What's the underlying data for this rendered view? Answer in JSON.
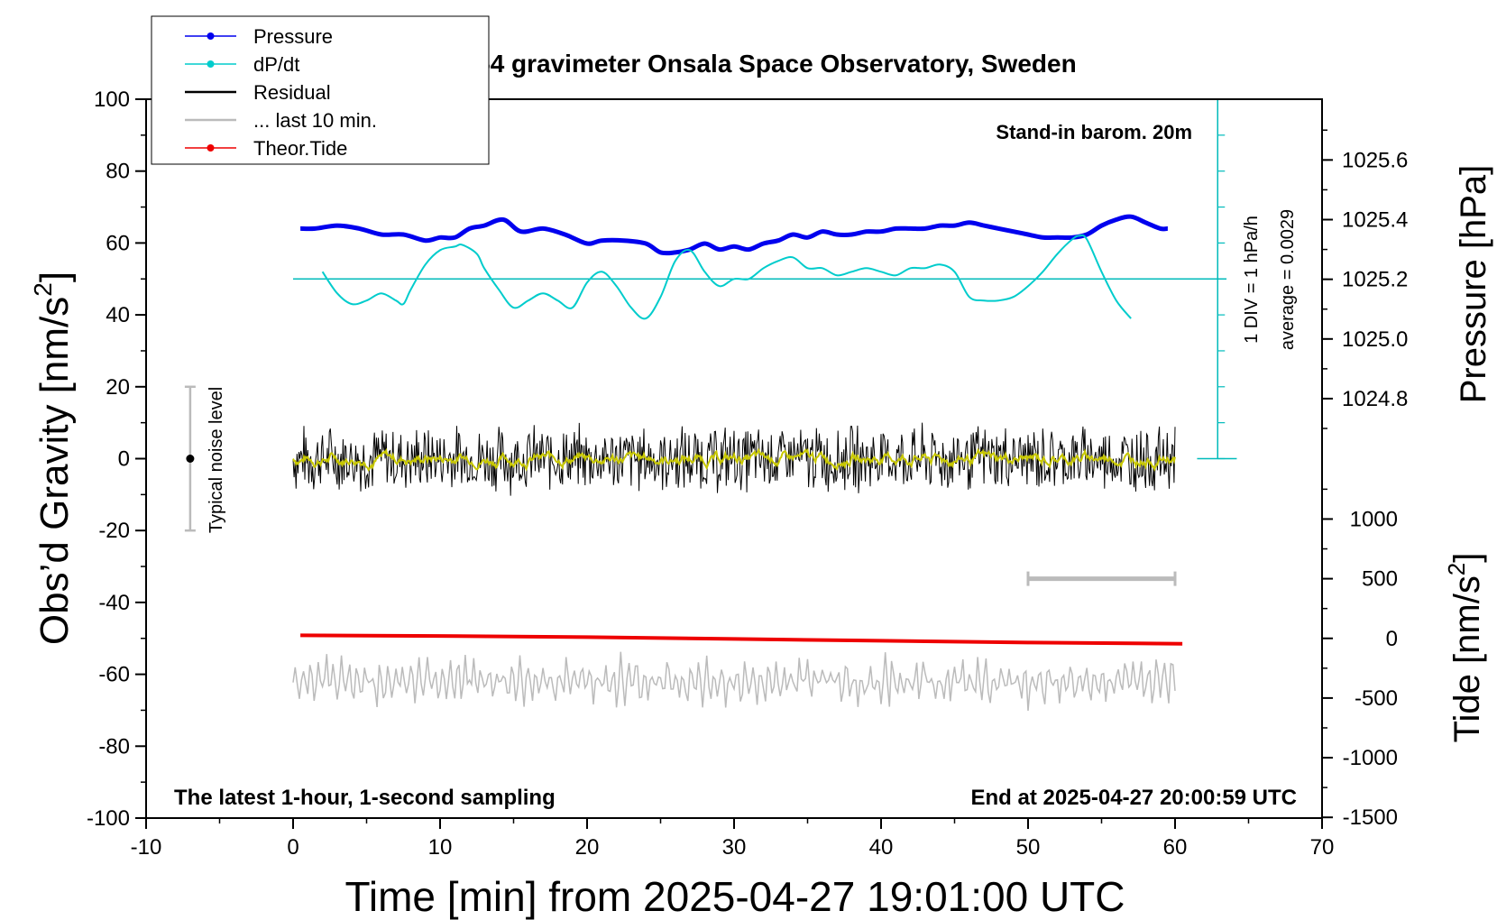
{
  "chart_data": {
    "type": "line",
    "title": "SCG_054 gravimeter Onsala Space Observatory, Sweden",
    "xlabel": "Time [min] from 2025-04-27 19:01:00 UTC",
    "ylabel_prefix": "Obs’d Gravity [nm/s",
    "ylabel_sup": "2",
    "ylabel_suffix": "]",
    "y2label": "Pressure [hPa]",
    "y3label_prefix": "Tide [nm/s",
    "y3label_sup": "2",
    "y3label_suffix": "]",
    "xlim": [
      -10,
      70
    ],
    "ylim": [
      -100,
      100
    ],
    "x_ticks": [
      "-10",
      "0",
      "10",
      "20",
      "30",
      "40",
      "50",
      "60",
      "70"
    ],
    "y_ticks": [
      "-100",
      "-80",
      "-60",
      "-40",
      "-20",
      "0",
      "20",
      "40",
      "60",
      "80",
      "100"
    ],
    "pressure_ticks": [
      "1024.8",
      "1025.0",
      "1025.2",
      "1025.4",
      "1025.6"
    ],
    "tide_ticks": [
      "-1500",
      "-1000",
      "-500",
      "0",
      "500",
      "1000"
    ],
    "legend_position": "top-left",
    "legend": [
      {
        "label": "Pressure",
        "color": "#0000ee",
        "marker": true
      },
      {
        "label": "dP/dt",
        "color": "#00cccc",
        "marker": true
      },
      {
        "label": "Residual",
        "color": "#000000",
        "marker": false
      },
      {
        "label": "... last 10 min.",
        "color": "#bbbbbb",
        "marker": false
      },
      {
        "label": "Theor.Tide",
        "color": "#ee0000",
        "marker": true
      }
    ],
    "annotations": {
      "stand_in": "Stand-in barom. 20m",
      "div_label": "1 DIV = 1 hPa/h",
      "average_label": "average = 0.0029",
      "noise_label": "Typical noise level",
      "latest_label": "The latest 1-hour, 1-second sampling",
      "end_label": "End at 2025-04-27 20:00:59 UTC"
    },
    "noise_bar": {
      "x": -7,
      "center": 0,
      "half_range": 20
    },
    "dpdt_baseline_y": 50,
    "series": [
      {
        "name": "Pressure",
        "axis": "pressure",
        "color": "#0000ee",
        "x": [
          0.5,
          1.5,
          3,
          4.5,
          6,
          7.5,
          9,
          10,
          11,
          12,
          13,
          14.3,
          15.5,
          17,
          18.5,
          20,
          21,
          22.5,
          24,
          25,
          26,
          27,
          28,
          29,
          30,
          31,
          32,
          33,
          34,
          35,
          36,
          37,
          38,
          39,
          40,
          41,
          42,
          43,
          44,
          45,
          46,
          47,
          48,
          49,
          50,
          51,
          52,
          53,
          54,
          55,
          56,
          57,
          58,
          59,
          59.5
        ],
        "values": [
          1025.37,
          1025.37,
          1025.38,
          1025.37,
          1025.35,
          1025.35,
          1025.33,
          1025.34,
          1025.34,
          1025.37,
          1025.38,
          1025.4,
          1025.36,
          1025.37,
          1025.35,
          1025.32,
          1025.33,
          1025.33,
          1025.32,
          1025.29,
          1025.29,
          1025.3,
          1025.32,
          1025.3,
          1025.31,
          1025.3,
          1025.32,
          1025.33,
          1025.35,
          1025.34,
          1025.36,
          1025.35,
          1025.35,
          1025.36,
          1025.36,
          1025.37,
          1025.37,
          1025.37,
          1025.38,
          1025.38,
          1025.39,
          1025.38,
          1025.37,
          1025.36,
          1025.35,
          1025.34,
          1025.34,
          1025.34,
          1025.35,
          1025.38,
          1025.4,
          1025.41,
          1025.39,
          1025.37,
          1025.37
        ]
      },
      {
        "name": "dP/dt",
        "axis": "gravity",
        "color": "#00cccc",
        "x": [
          2,
          3,
          4,
          5,
          6,
          7,
          7.5,
          8,
          9,
          10,
          11,
          11.5,
          12.5,
          13,
          14,
          15,
          16,
          17,
          18,
          19,
          20,
          21,
          22,
          23,
          24,
          25,
          26,
          27,
          28,
          29,
          30,
          31,
          32,
          33,
          34,
          35,
          36,
          37,
          38,
          39,
          40,
          41,
          42,
          43,
          44,
          45,
          46,
          47,
          48,
          49,
          50,
          51,
          52,
          53,
          53.5,
          54,
          55,
          56,
          57
        ],
        "values": [
          52,
          46,
          43,
          44,
          46,
          44,
          43,
          47,
          54,
          58,
          59,
          59.5,
          57,
          53,
          47,
          42,
          44,
          46,
          44,
          42,
          49,
          52,
          48,
          42,
          39,
          45,
          55,
          58,
          52,
          48,
          50,
          50,
          53,
          55,
          56,
          53,
          53,
          51,
          52,
          53,
          52,
          51,
          53,
          53,
          54,
          52,
          45,
          44,
          44,
          45,
          48,
          52,
          57,
          61,
          62,
          61,
          52,
          44,
          39
        ]
      },
      {
        "name": "Theor.Tide",
        "axis": "tide",
        "color": "#ee0000",
        "x": [
          0.5,
          10,
          20,
          30,
          40,
          50,
          60.5
        ],
        "values": [
          25,
          20,
          10,
          -5,
          -20,
          -35,
          -45
        ]
      }
    ],
    "residual": {
      "x_start": 0,
      "x_end": 60,
      "amplitude": 10,
      "center": 0
    },
    "last_10_min": {
      "x_start": 0,
      "x_end": 60,
      "center": -62,
      "amplitude": 8
    },
    "last_10_min_bar": {
      "x_start": 50,
      "x_end": 60,
      "tide_value": 500
    }
  }
}
